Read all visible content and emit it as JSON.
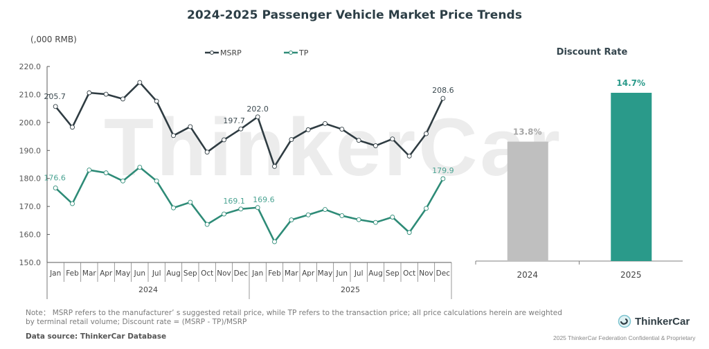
{
  "title": "2024-2025 Passenger Vehicle Market Price Trends",
  "unit_label": "(,000 RMB)",
  "watermark": "ThinkerCar",
  "note": "Note： MSRP refers to the manufacturer’ s suggested retail price, while TP refers to the transaction price; all price calculations herein are weighted by terminal retail volume; Discount rate = (MSRP - TP)/MSRP",
  "source": "Data source: ThinkerCar Database",
  "brand": {
    "name": "ThinkerCar",
    "icon": "thinkercar-logo-icon"
  },
  "confidential": "2025 ThinkerCar Federation Confidential & Proprietary",
  "colors": {
    "msrp": "#2f3c42",
    "tp": "#2e8b77",
    "bar_2024": "#bfbfbf",
    "bar_2025": "#2a9a8a",
    "label_2024": "#a6a6a6",
    "label_2025": "#2a9a8a"
  },
  "chart_data": [
    {
      "type": "line",
      "title": "2024-2025 Passenger Vehicle Market Price Trends",
      "ylabel": "(,000 RMB)",
      "xlabel": "",
      "ylim": [
        150,
        220
      ],
      "yticks": [
        "150.0",
        "160.0",
        "170.0",
        "180.0",
        "190.0",
        "200.0",
        "210.0",
        "220.0"
      ],
      "ytick_values": [
        150,
        160,
        170,
        180,
        190,
        200,
        210,
        220
      ],
      "grid": false,
      "legend": "top-center",
      "categories": [
        "Jan",
        "Feb",
        "Mar",
        "Apr",
        "May",
        "Jun",
        "Jul",
        "Aug",
        "Sep",
        "Oct",
        "Nov",
        "Dec",
        "Jan",
        "Feb",
        "Mar",
        "Apr",
        "May",
        "Jun",
        "Jul",
        "Aug",
        "Sep",
        "Oct",
        "Nov",
        "Dec"
      ],
      "year_groups": [
        {
          "label": "2024",
          "count": 12
        },
        {
          "label": "2025",
          "count": 12
        }
      ],
      "series": [
        {
          "name": "MSRP",
          "values": [
            205.7,
            198.3,
            210.6,
            210.1,
            208.4,
            214.3,
            207.6,
            195.3,
            198.5,
            189.4,
            193.8,
            197.7,
            202.0,
            184.3,
            193.9,
            197.4,
            199.6,
            197.6,
            193.6,
            191.7,
            194.1,
            188.0,
            196.0,
            208.6
          ],
          "labels": [
            {
              "index": 0,
              "text": "205.7"
            },
            {
              "index": 11,
              "text": "197.7"
            },
            {
              "index": 12,
              "text": "202.0"
            },
            {
              "index": 23,
              "text": "208.6"
            }
          ]
        },
        {
          "name": "TP",
          "values": [
            176.6,
            171.0,
            183.0,
            182.0,
            179.1,
            184.0,
            179.1,
            169.5,
            171.5,
            163.6,
            167.3,
            169.1,
            169.6,
            157.4,
            165.2,
            167.0,
            168.9,
            166.7,
            165.3,
            164.3,
            166.2,
            160.7,
            169.3,
            179.9
          ],
          "labels": [
            {
              "index": 0,
              "text": "176.6"
            },
            {
              "index": 11,
              "text": "169.1"
            },
            {
              "index": 12,
              "text": "169.6"
            },
            {
              "index": 23,
              "text": "179.9"
            }
          ]
        }
      ]
    },
    {
      "type": "bar",
      "title": "Discount Rate",
      "categories": [
        "2024",
        "2025"
      ],
      "values": [
        13.8,
        14.7
      ],
      "value_labels": [
        "13.8%",
        "14.7%"
      ],
      "unit": "%",
      "ylim": [
        0,
        16
      ],
      "grid": false
    }
  ]
}
